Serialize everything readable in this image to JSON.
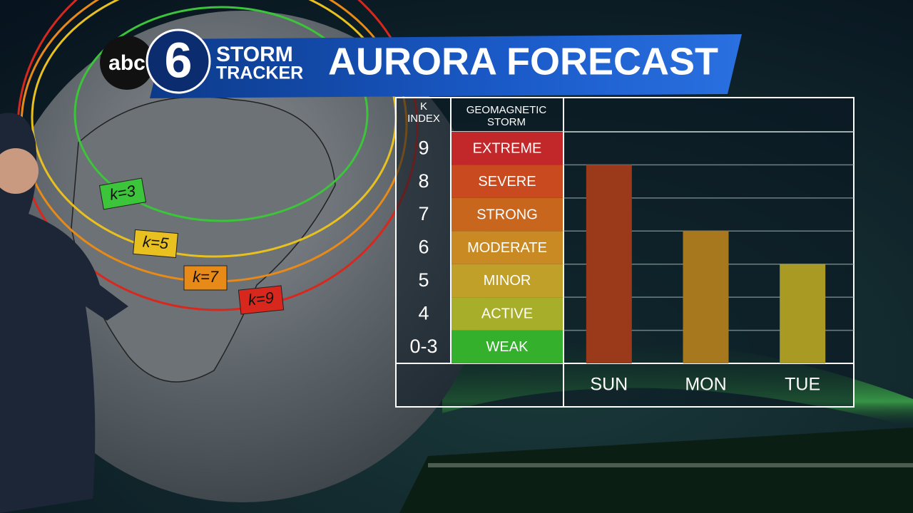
{
  "header": {
    "network": "abc",
    "channel": "6",
    "brand_line_1": "STORM",
    "brand_line_2": "TRACKER"
  },
  "map_labels": [
    {
      "text": "k=3",
      "color": "#3cc43a"
    },
    {
      "text": "k=5",
      "color": "#e8c020"
    },
    {
      "text": "k=7",
      "color": "#e88a18"
    },
    {
      "text": "k=9",
      "color": "#d8281e"
    }
  ],
  "chart_data": {
    "type": "bar",
    "title": "AURORA FORECAST",
    "k_index_header": "K INDEX",
    "storm_header": "GEOMAGNETIC STORM",
    "categories": [
      "SUN",
      "MON",
      "TUE"
    ],
    "series": [
      {
        "name": "K index",
        "colors": [
          "#9a3a1a",
          "#a8781e",
          "#a99a24"
        ],
        "values": [
          8,
          6,
          5
        ]
      }
    ],
    "ylim": [
      2,
      9
    ],
    "yticks": [
      {
        "value": 2.5,
        "label": "0-3"
      },
      {
        "value": 3.5,
        "label": "4"
      },
      {
        "value": 4.5,
        "label": "5"
      },
      {
        "value": 5.5,
        "label": "6"
      },
      {
        "value": 6.5,
        "label": "7"
      },
      {
        "value": 7.5,
        "label": "8"
      },
      {
        "value": 8.5,
        "label": "9"
      }
    ],
    "storm_levels": [
      {
        "label": "WEAK",
        "color": "#34b02c"
      },
      {
        "label": "ACTIVE",
        "color": "#a6ae2a"
      },
      {
        "label": "MINOR",
        "color": "#c0a028"
      },
      {
        "label": "MODERATE",
        "color": "#c98a24"
      },
      {
        "label": "STRONG",
        "color": "#c8661e"
      },
      {
        "label": "SEVERE",
        "color": "#c84a1e"
      },
      {
        "label": "EXTREME",
        "color": "#c2282a"
      }
    ]
  }
}
